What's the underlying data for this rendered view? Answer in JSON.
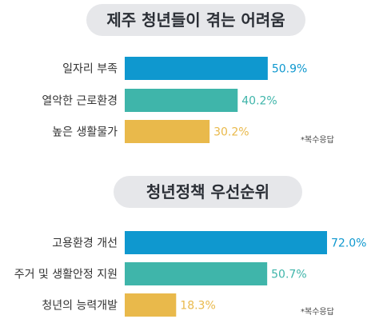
{
  "chart_data": [
    {
      "type": "bar",
      "orientation": "horizontal",
      "title": "제주 청년들이 겪는 어려움",
      "categories": [
        "일자리 부족",
        "열악한 근로환경",
        "높은 생활물가"
      ],
      "values": [
        50.9,
        40.2,
        30.2
      ],
      "value_labels": [
        "50.9%",
        "40.2%",
        "30.2%"
      ],
      "bar_colors": [
        "#0f98cf",
        "#3fb5aa",
        "#e9b94b"
      ],
      "note": "*복수응답",
      "xlim": [
        0,
        72.0
      ],
      "grid": false
    },
    {
      "type": "bar",
      "orientation": "horizontal",
      "title": "청년정책 우선순위",
      "categories": [
        "고용환경 개선",
        "주거 및 생활안정 지원",
        "청년의 능력개발"
      ],
      "values": [
        72.0,
        50.7,
        18.3
      ],
      "value_labels": [
        "72.0%",
        "50.7%",
        "18.3%"
      ],
      "bar_colors": [
        "#0f98cf",
        "#3fb5aa",
        "#e9b94b"
      ],
      "note": "*복수응답",
      "xlim": [
        0,
        72.0
      ],
      "grid": false
    }
  ]
}
